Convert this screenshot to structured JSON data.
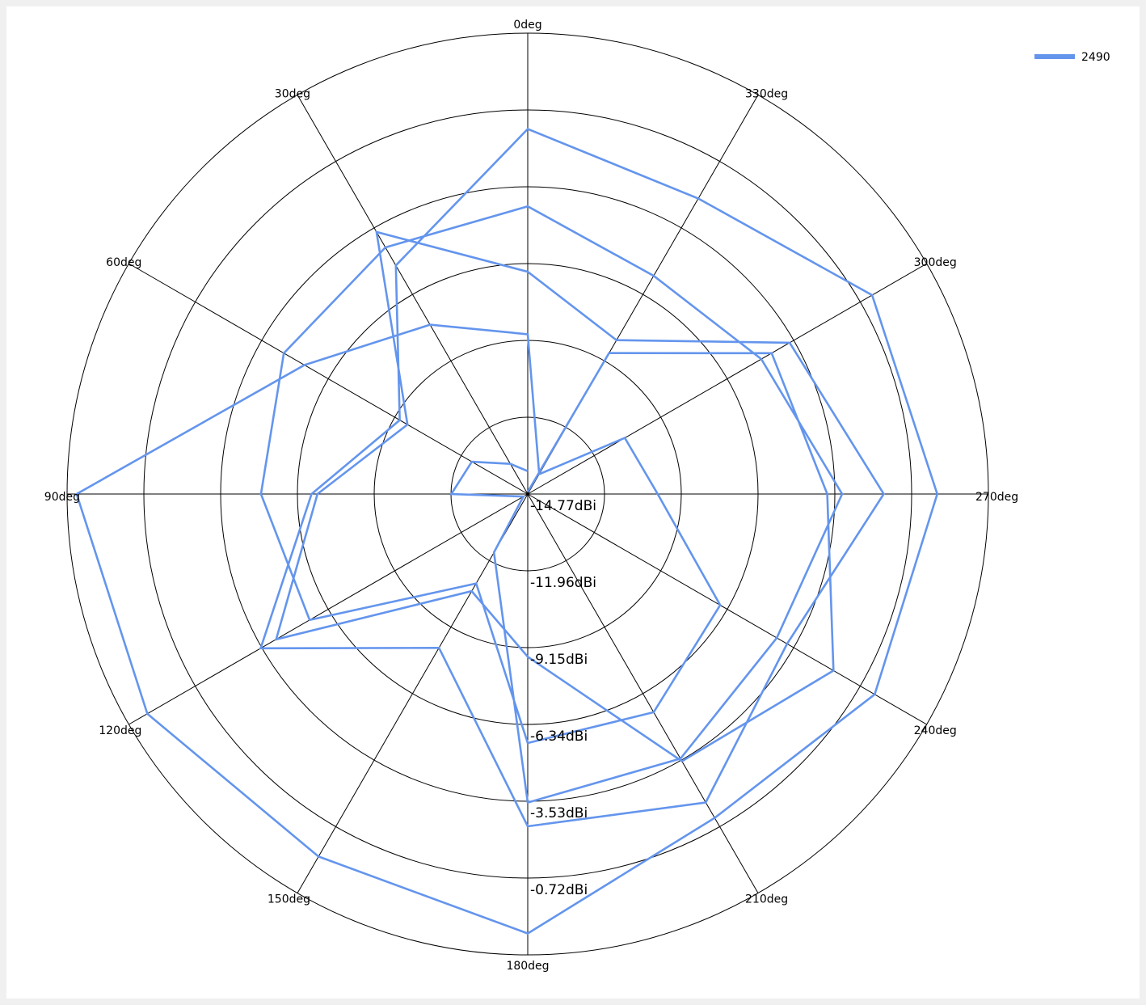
{
  "chart_data": {
    "type": "polar-line",
    "title": "",
    "series": [
      {
        "name": "2490",
        "color": "#6495ED",
        "points_deg_dBi": [
          [
            0,
            -14.0
          ],
          [
            30,
            -13.6
          ],
          [
            60,
            -12.6
          ],
          [
            90,
            -12.2
          ],
          [
            120,
            -14.6
          ],
          [
            150,
            -12.5
          ],
          [
            180,
            -4.4
          ],
          [
            210,
            -4.5
          ],
          [
            240,
            -5.1
          ],
          [
            270,
            -4.2
          ],
          [
            300,
            -5.7
          ],
          [
            330,
            -6.3
          ],
          [
            0,
            -5.1
          ],
          [
            30,
            -5.2
          ],
          [
            60,
            -5.3
          ],
          [
            90,
            -5.8
          ],
          [
            120,
            -6.3
          ],
          [
            150,
            -11.3
          ],
          [
            180,
            -6.4
          ],
          [
            210,
            -6.3
          ],
          [
            240,
            -7.3
          ],
          [
            270,
            -10.4
          ],
          [
            300,
            -11.0
          ],
          [
            330,
            -14.0
          ],
          [
            0,
            -9.4
          ],
          [
            30,
            -8.2
          ],
          [
            60,
            -6.1
          ],
          [
            90,
            0.4
          ],
          [
            120,
            0.0
          ],
          [
            150,
            -0.7
          ],
          [
            180,
            0.0
          ],
          [
            210,
            -2.2
          ],
          [
            240,
            -1.3
          ],
          [
            270,
            -1.0
          ],
          [
            300,
            -1.4
          ],
          [
            330,
            -3.3
          ],
          [
            0,
            -2.5
          ],
          [
            30,
            -5.9
          ],
          [
            60,
            -9.8
          ],
          [
            90,
            -7.5
          ],
          [
            120,
            -4.4
          ],
          [
            150,
            -8.8
          ],
          [
            180,
            -3.6
          ],
          [
            210,
            -2.8
          ],
          [
            240,
            -4.7
          ],
          [
            270,
            -2.8
          ],
          [
            300,
            -4.6
          ],
          [
            330,
            -8.8
          ],
          [
            0,
            -7.3
          ],
          [
            30,
            -4.6
          ],
          [
            60,
            -10.1
          ],
          [
            90,
            -7.7
          ],
          [
            120,
            -5.0
          ],
          [
            150,
            -11.0
          ],
          [
            180,
            -9.3
          ],
          [
            210,
            -4.4
          ],
          [
            240,
            -2.9
          ],
          [
            270,
            -4.7
          ],
          [
            300,
            -5.3
          ],
          [
            330,
            -9.3
          ],
          [
            0,
            -14.7
          ]
        ]
      }
    ],
    "angle_ticks": [
      "0deg",
      "30deg",
      "60deg",
      "90deg",
      "120deg",
      "150deg",
      "180deg",
      "210deg",
      "240deg",
      "270deg",
      "300deg",
      "330deg"
    ],
    "radial_ticks": [
      "-14.77dBi",
      "-11.96dBi",
      "-9.15dBi",
      "-6.34dBi",
      "-3.53dBi",
      "-0.72dBi"
    ],
    "r_min": -14.77,
    "r_max": 0.72,
    "angle_direction": "counterclockwise",
    "zero_angle": "top",
    "legend": {
      "position": "top-right",
      "entries": [
        "2490"
      ]
    },
    "grid": true
  }
}
